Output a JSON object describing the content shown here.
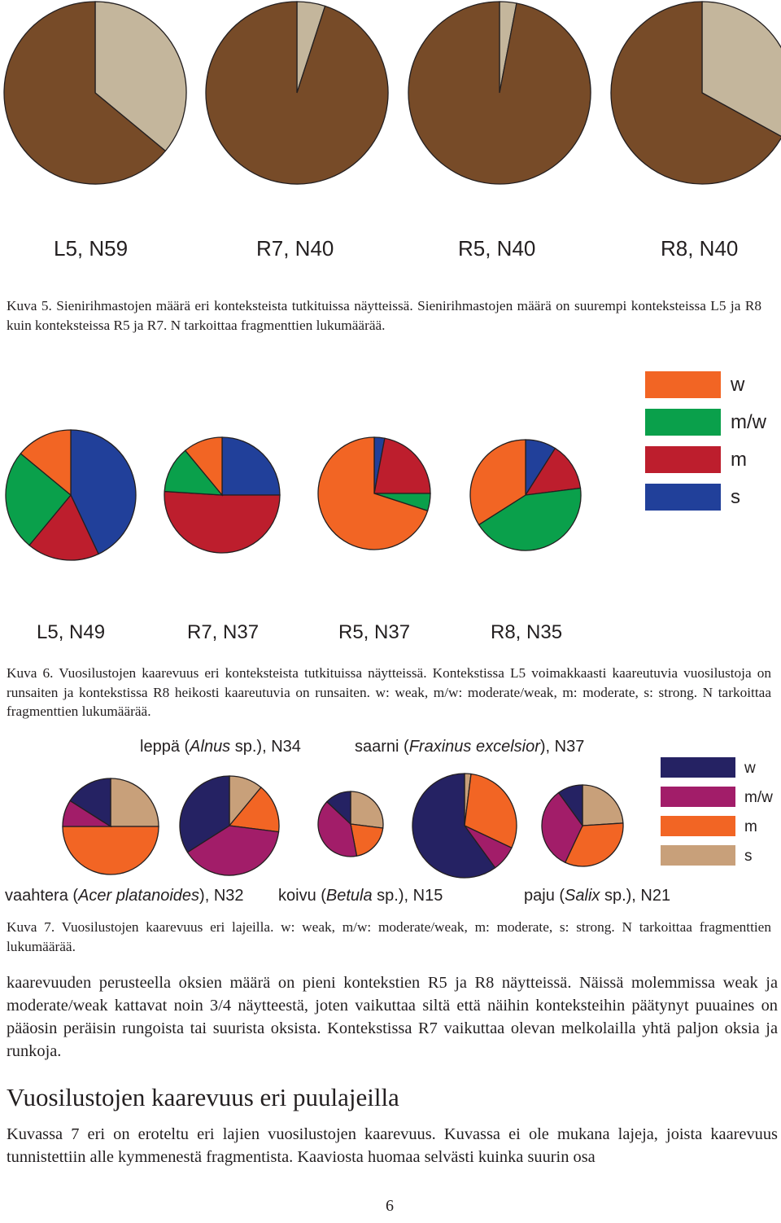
{
  "colors": {
    "fig5": {
      "dark": "#774b28",
      "light": "#c4b69c"
    },
    "fig6": {
      "w": "#f26524",
      "mw": "#0aa04b",
      "m": "#bd1e2d",
      "s": "#21409a"
    },
    "fig7": {
      "w": "#252263",
      "mw": "#a21d69",
      "m": "#f26524",
      "s": "#c8a07a"
    },
    "stroke": "#231f20"
  },
  "chart_data": [
    {
      "type": "pie",
      "id": "fig5",
      "series_colors": [
        "#774b28",
        "#c4b69c"
      ],
      "pies": [
        {
          "label": "L5, N59",
          "values": [
            64,
            36
          ]
        },
        {
          "label": "R7, N40",
          "values": [
            95,
            5
          ]
        },
        {
          "label": "R5, N40",
          "values": [
            97,
            3
          ]
        },
        {
          "label": "R8, N40",
          "values": [
            67,
            33
          ]
        }
      ]
    },
    {
      "type": "pie",
      "id": "fig6",
      "series": [
        "w",
        "m/w",
        "m",
        "s"
      ],
      "pies": [
        {
          "label": "L5, N49",
          "values": {
            "w": 14,
            "m/w": 25,
            "m": 18,
            "s": 43
          }
        },
        {
          "label": "R7, N37",
          "values": {
            "w": 11,
            "m/w": 13,
            "m": 51,
            "s": 25
          }
        },
        {
          "label": "R5, N37",
          "values": {
            "w": 70,
            "m/w": 5,
            "m": 22,
            "s": 3
          }
        },
        {
          "label": "R8, N35",
          "values": {
            "w": 34,
            "m/w": 43,
            "m": 14,
            "s": 9
          }
        }
      ]
    },
    {
      "type": "pie",
      "id": "fig7",
      "series": [
        "w",
        "m/w",
        "m",
        "s"
      ],
      "pies": [
        {
          "label": "vaahtera (Acer platanoides), N32",
          "values": {
            "w": 16,
            "m/w": 9,
            "m": 50,
            "s": 25
          }
        },
        {
          "label": "leppä (Alnus sp.), N34",
          "values": {
            "w": 34,
            "m/w": 39,
            "m": 16,
            "s": 11
          }
        },
        {
          "label": "koivu (Betula sp.), N15",
          "values": {
            "w": 13,
            "m/w": 40,
            "m": 20,
            "s": 27
          }
        },
        {
          "label": "saarni (Fraxinus excelsior), N37",
          "values": {
            "w": 60,
            "m/w": 8,
            "m": 30,
            "s": 2
          }
        },
        {
          "label": "paju (Salix sp.), N21",
          "values": {
            "w": 10,
            "m/w": 33,
            "m": 33,
            "s": 24
          }
        }
      ]
    }
  ],
  "fig5_labels": [
    "L5, N59",
    "R7, N40",
    "R5, N40",
    "R8, N40"
  ],
  "fig5_caption": "Kuva 5. Sienirihmastojen määrä eri konteksteista tutkituissa näytteissä. Sienirihmastojen määrä on suurempi kontekstеissa L5 ja R8 kuin konteksteissa R5 ja R7.  N tarkoittaa fragmenttien lukumäärää.",
  "fig6_legend": [
    "w",
    "m/w",
    "m",
    "s"
  ],
  "fig6_labels": [
    "L5, N49",
    "R7, N37",
    "R5, N37",
    "R8, N35"
  ],
  "fig6_caption": "Kuva 6. Vuosilustojen kaarevuus eri konteksteista tutkituissa näytteissä. Kontekstissa L5 voimakkaasti kaareutuvia vuosilustoja on runsaiten ja kontekstissa R8 heikosti kaareutuvia on runsaiten. w: weak, m/w: moderate/weak, m: moderate, s: strong. N tarkoittaa fragmenttien lukumäärää.",
  "fig7_legend": [
    "w",
    "m/w",
    "m",
    "s"
  ],
  "fig7_labels": {
    "leppa": {
      "name": "leppä (",
      "latin": "Alnus",
      "rest": " sp.), N34"
    },
    "saarni": {
      "name": "saarni (",
      "latin": "Fraxinus excelsior",
      "rest": "), N37"
    },
    "vaahtera": {
      "name": "vaahtera (",
      "latin": "Acer platanoides",
      "rest": "), N32"
    },
    "koivu": {
      "name": "koivu (",
      "latin": "Betula",
      "rest": " sp.), N15"
    },
    "paju": {
      "name": "paju (",
      "latin": "Salix",
      "rest": " sp.), N21"
    }
  },
  "fig7_caption": "Kuva 7. Vuosilustojen kaarevuus eri lajeilla. w: weak, m/w: moderate/weak, m: moderate, s: strong. N tarkoittaa fragmenttien lukumäärää.",
  "paragraph1": "kaarevuuden perusteella oksien määrä on pieni kontekstien R5 ja R8 näytteissä. Näissä molemmissa weak ja moderate/weak kattavat noin 3/4 näytteestä, joten vaikuttaa siltä että näihin konteksteihin päätynyt puuaines on pääosin peräisin rungoista tai suurista oksista. Kontekstissa R7 vaikuttaa olevan melkolailla yhtä paljon oksia ja runkoja.",
  "heading": "Vuosilustojen kaarevuus eri puulajeilla",
  "paragraph2": "Kuvassa 7 eri on eroteltu eri lajien vuosilustojen kaarevuus. Kuvassa ei ole mukana lajeja, joista kaarevuus tunnistettiin alle kymmenestä fragmentista. Kaaviosta huomaa selvästi kuinka suurin osa",
  "page_number": "6"
}
